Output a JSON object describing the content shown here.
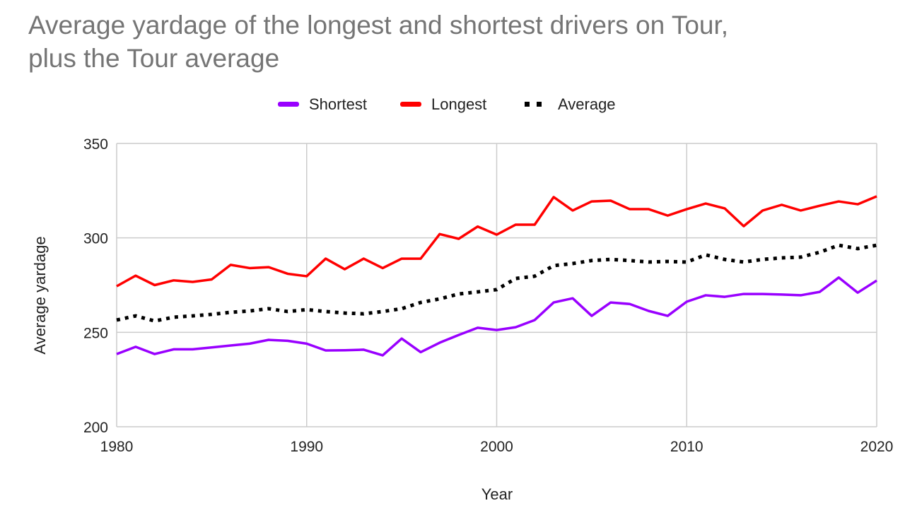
{
  "chart_data": {
    "type": "line",
    "title_lines": [
      "Average yardage of the longest and shortest drivers on Tour,",
      "plus the Tour average"
    ],
    "xlabel": "Year",
    "ylabel": "Average yardage",
    "xlim": [
      1980,
      2020
    ],
    "ylim": [
      200,
      350
    ],
    "x_ticks": [
      1980,
      1990,
      2000,
      2010,
      2020
    ],
    "y_ticks": [
      200,
      250,
      300,
      350
    ],
    "grid": true,
    "legend_position": "top",
    "x": [
      1980,
      1981,
      1982,
      1983,
      1984,
      1985,
      1986,
      1987,
      1988,
      1989,
      1990,
      1991,
      1992,
      1993,
      1994,
      1995,
      1996,
      1997,
      1998,
      1999,
      2000,
      2001,
      2002,
      2003,
      2004,
      2005,
      2006,
      2007,
      2008,
      2009,
      2010,
      2011,
      2012,
      2013,
      2014,
      2015,
      2016,
      2017,
      2018,
      2019,
      2020
    ],
    "series": [
      {
        "name": "Shortest",
        "color": "#9900ff",
        "style": "solid",
        "values": [
          238.5,
          242.3,
          238.5,
          241,
          241,
          242,
          243,
          244,
          246,
          245.5,
          244,
          240.4,
          240.5,
          240.8,
          237.8,
          246.7,
          239.5,
          244.5,
          248.6,
          252.4,
          251.2,
          252.7,
          256.5,
          265.8,
          268,
          258.7,
          265.8,
          265,
          261.3,
          258.7,
          266.2,
          269.6,
          268.8,
          270.3,
          270.3,
          270,
          269.6,
          271.4,
          279,
          271,
          277.4
        ]
      },
      {
        "name": "Longest",
        "color": "#ff0000",
        "style": "solid",
        "values": [
          274.4,
          280,
          275,
          277.5,
          276.7,
          278,
          285.7,
          284,
          284.5,
          281,
          279.7,
          289,
          283.4,
          289,
          284,
          289,
          289,
          302,
          299.5,
          306,
          301.7,
          307,
          307,
          321.6,
          314.5,
          319.3,
          319.7,
          315.2,
          315.2,
          311.8,
          315.2,
          318.2,
          315.6,
          306.2,
          314.5,
          317.5,
          314.5,
          317,
          319.3,
          317.8,
          322
        ]
      },
      {
        "name": "Average",
        "color": "#000000",
        "style": "dotted",
        "values": [
          256.5,
          258.7,
          256,
          258,
          258.7,
          259.5,
          260.6,
          261.3,
          262.5,
          261,
          262,
          261,
          260.2,
          259.8,
          261,
          262.5,
          265.8,
          267.7,
          270.3,
          271.4,
          272.6,
          278.5,
          279.7,
          285.3,
          286.4,
          288,
          288.6,
          288,
          287.2,
          287.5,
          287.2,
          291,
          288.6,
          287.2,
          288.6,
          289.4,
          289.8,
          292.4,
          296.1,
          294.3,
          296.1
        ]
      }
    ]
  }
}
